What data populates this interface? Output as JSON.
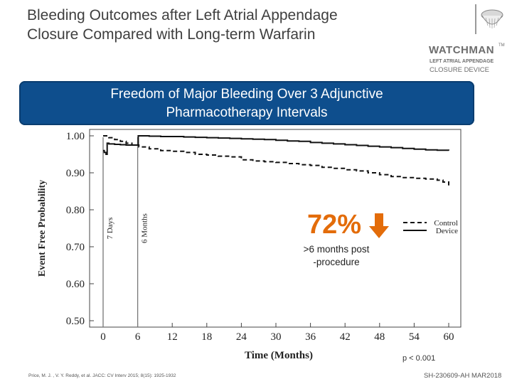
{
  "header": {
    "title": "Bleeding Outcomes after Left Atrial Appendage Closure Compared with Long-term Warfarin"
  },
  "logo": {
    "brand": "WATCHMAN",
    "tm": "TM",
    "line1": "LEFT ATRIAL APPENDAGE",
    "line2": "CLOSURE DEVICE",
    "icon": "watchman-device-icon"
  },
  "banner": {
    "line1": "Freedom of Major Bleeding Over 3 Adjunctive",
    "line2": "Pharmacotherapy Intervals"
  },
  "callout": {
    "percent": "72%",
    "arrow_icon": "down-arrow-icon",
    "arrow_color": "#e36c0a",
    "text_line1": ">6 months post",
    "text_line2": "-procedure"
  },
  "p_value": "p < 0.001",
  "footer": {
    "citation": "Price, M. J. , V. Y. Reddy, et al. JACC: CV Interv 2015; 8(15): 1925-1932",
    "code": "SH-230609-AH  MAR2018"
  },
  "colors": {
    "banner": "#0e4e8d",
    "accent": "#e36c0a",
    "title": "#3f3f3f"
  },
  "chart_data": {
    "type": "line",
    "title": "",
    "xlabel": "Time (Months)",
    "ylabel": "Event Free Probability",
    "xlim": [
      0,
      60
    ],
    "ylim": [
      0.5,
      1.0
    ],
    "x_ticks": [
      0,
      6,
      12,
      18,
      24,
      30,
      36,
      42,
      48,
      54,
      60
    ],
    "y_ticks": [
      0.5,
      0.6,
      0.7,
      0.8,
      0.9,
      1.0
    ],
    "y_tick_labels": [
      "0.50",
      "0.60",
      "0.70",
      "0.80",
      "0.90",
      "1.00"
    ],
    "grid": false,
    "legend": "right",
    "vertical_markers": [
      {
        "x": 0,
        "label": "7 Days"
      },
      {
        "x": 6,
        "label": "6 Months"
      }
    ],
    "series": [
      {
        "name": "Control",
        "style": "dashed",
        "points": [
          [
            0,
            1.0
          ],
          [
            1,
            0.995
          ],
          [
            2,
            0.99
          ],
          [
            3,
            0.985
          ],
          [
            4,
            0.98
          ],
          [
            5,
            0.975
          ],
          [
            6,
            0.975
          ],
          [
            6.2,
            0.97
          ],
          [
            8,
            0.965
          ],
          [
            10,
            0.96
          ],
          [
            12,
            0.958
          ],
          [
            14,
            0.955
          ],
          [
            16,
            0.95
          ],
          [
            18,
            0.948
          ],
          [
            20,
            0.945
          ],
          [
            22,
            0.943
          ],
          [
            24,
            0.935
          ],
          [
            26,
            0.932
          ],
          [
            28,
            0.93
          ],
          [
            30,
            0.928
          ],
          [
            32,
            0.925
          ],
          [
            34,
            0.922
          ],
          [
            36,
            0.92
          ],
          [
            38,
            0.915
          ],
          [
            40,
            0.912
          ],
          [
            42,
            0.908
          ],
          [
            44,
            0.905
          ],
          [
            46,
            0.9
          ],
          [
            48,
            0.895
          ],
          [
            50,
            0.89
          ],
          [
            52,
            0.887
          ],
          [
            54,
            0.885
          ],
          [
            56,
            0.883
          ],
          [
            58,
            0.88
          ],
          [
            59,
            0.875
          ],
          [
            60,
            0.866
          ]
        ]
      },
      {
        "name": "Device",
        "style": "solid",
        "points": [
          [
            0,
            0.96
          ],
          [
            0.2,
            0.955
          ],
          [
            0.5,
            0.95
          ],
          [
            0.7,
            0.98
          ],
          [
            1,
            0.978
          ],
          [
            2,
            0.977
          ],
          [
            3,
            0.976
          ],
          [
            4,
            0.975
          ],
          [
            5,
            0.975
          ],
          [
            6,
            0.975
          ],
          [
            6.1,
            1.0
          ],
          [
            8,
            0.999
          ],
          [
            10,
            0.998
          ],
          [
            12,
            0.998
          ],
          [
            14,
            0.997
          ],
          [
            16,
            0.996
          ],
          [
            18,
            0.995
          ],
          [
            20,
            0.994
          ],
          [
            22,
            0.993
          ],
          [
            24,
            0.992
          ],
          [
            26,
            0.991
          ],
          [
            28,
            0.99
          ],
          [
            30,
            0.988
          ],
          [
            32,
            0.986
          ],
          [
            34,
            0.985
          ],
          [
            36,
            0.982
          ],
          [
            38,
            0.98
          ],
          [
            40,
            0.978
          ],
          [
            42,
            0.976
          ],
          [
            44,
            0.974
          ],
          [
            46,
            0.972
          ],
          [
            48,
            0.97
          ],
          [
            50,
            0.968
          ],
          [
            52,
            0.966
          ],
          [
            54,
            0.964
          ],
          [
            56,
            0.962
          ],
          [
            58,
            0.961
          ],
          [
            60,
            0.96
          ]
        ]
      }
    ]
  }
}
